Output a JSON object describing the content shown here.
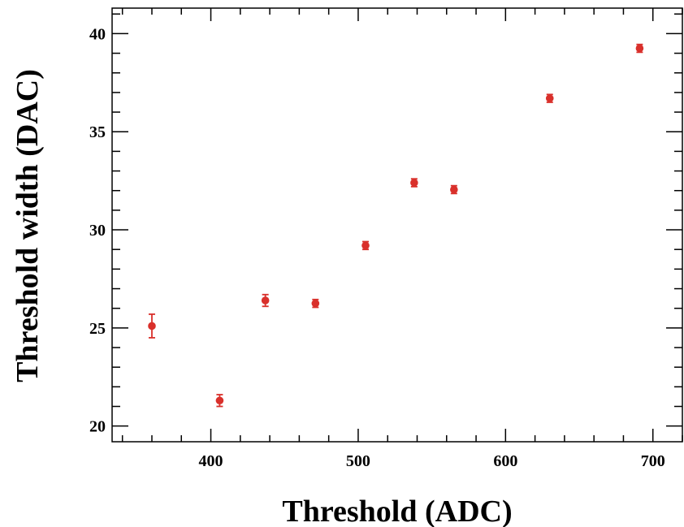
{
  "chart_data": {
    "type": "scatter",
    "title": "",
    "xlabel": "Threshold (ADC)",
    "ylabel": "Threshold width (DAC)",
    "xlim": [
      333,
      720
    ],
    "ylim": [
      19.2,
      41.3
    ],
    "x_ticks": [
      400,
      500,
      600,
      700
    ],
    "y_ticks": [
      20,
      25,
      30,
      35,
      40
    ],
    "x_tick_labels": [
      "400",
      "500",
      "600",
      "700"
    ],
    "y_tick_labels": [
      "20",
      "25",
      "30",
      "35",
      "40"
    ],
    "x_minor_step": 20,
    "y_minor_step": 1,
    "grid": false,
    "legend": "none",
    "marker_color": "#d9302b",
    "series": [
      {
        "points": [
          {
            "x": 360,
            "y": 25.1,
            "err": 0.6
          },
          {
            "x": 406,
            "y": 21.3,
            "err": 0.3
          },
          {
            "x": 437,
            "y": 26.4,
            "err": 0.3
          },
          {
            "x": 471,
            "y": 26.25,
            "err": 0.2
          },
          {
            "x": 505,
            "y": 29.2,
            "err": 0.2
          },
          {
            "x": 538,
            "y": 32.4,
            "err": 0.2
          },
          {
            "x": 565,
            "y": 32.05,
            "err": 0.2
          },
          {
            "x": 630,
            "y": 36.7,
            "err": 0.2
          },
          {
            "x": 691,
            "y": 39.25,
            "err": 0.2
          }
        ]
      }
    ]
  }
}
